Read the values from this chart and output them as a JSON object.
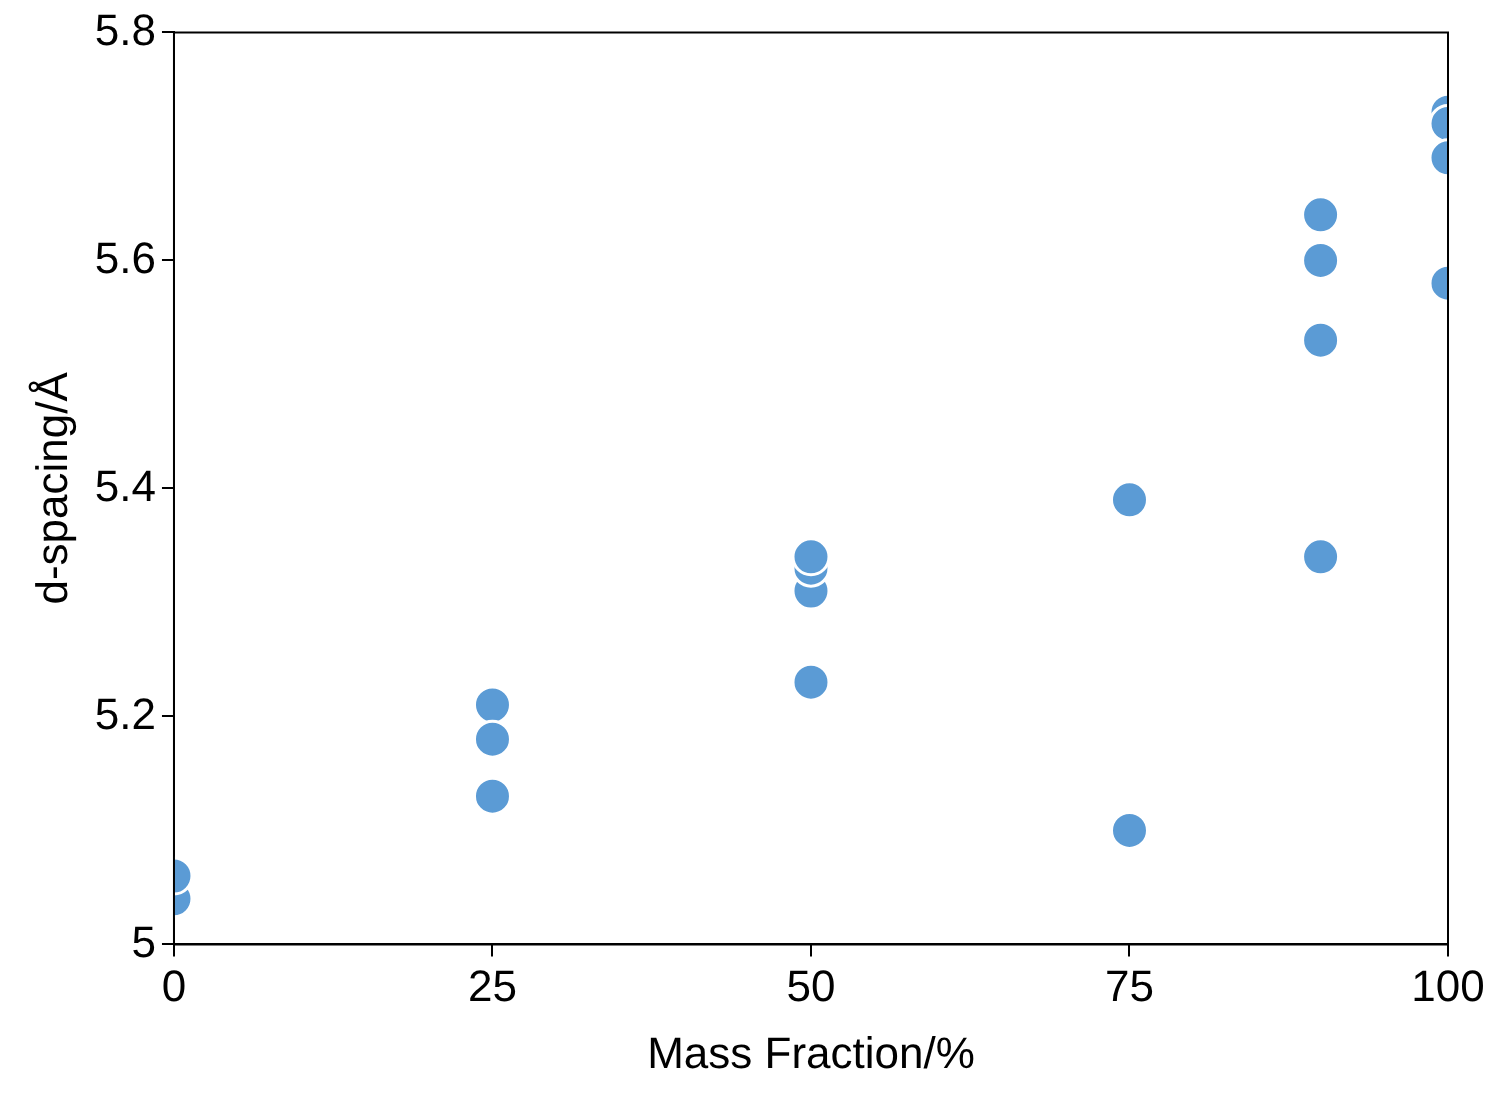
{
  "chart_data": {
    "type": "scatter",
    "xlabel": "Mass Fraction/%",
    "ylabel": "d-spacing/Å",
    "x": [
      0,
      0,
      25,
      25,
      25,
      50,
      50,
      50,
      50,
      75,
      75,
      90,
      90,
      90,
      90,
      100,
      100,
      100,
      100
    ],
    "values": [
      5.04,
      5.06,
      5.21,
      5.18,
      5.13,
      5.31,
      5.33,
      5.34,
      5.23,
      5.39,
      5.1,
      5.64,
      5.6,
      5.53,
      5.34,
      5.73,
      5.72,
      5.69,
      5.58
    ],
    "color": "#5b9bd5",
    "marker": "circle",
    "grid": false,
    "legend": false,
    "xlim": [
      0,
      100
    ],
    "xticks": [
      0,
      25,
      50,
      75,
      100
    ],
    "ylim": [
      5,
      5.8
    ],
    "yticks": [
      5,
      5.2,
      5.4,
      5.6,
      5.8
    ]
  }
}
